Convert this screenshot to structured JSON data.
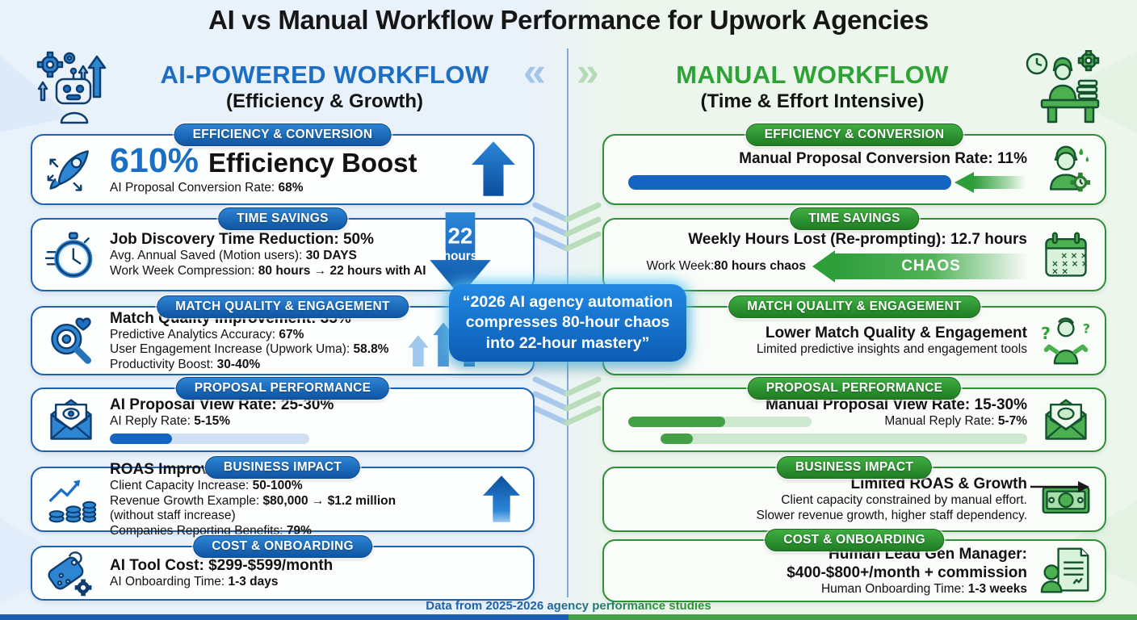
{
  "page": {
    "title": "AI vs Manual Workflow Performance for Upwork Agencies",
    "quote": "“2026 AI agency automation compresses 80-hour chaos into 22-hour mastery”",
    "footer": "Data from 2025-2026 agency performance studies"
  },
  "colors": {
    "blue_accent": "#1c6ec2",
    "blue_dark": "#0f55a3",
    "blue_bar_fill": "#1565c0",
    "blue_bar_track": "#cfe0f5",
    "green_accent": "#2fa235",
    "green_dark": "#1f7d24",
    "green_bar_fill": "#43a047",
    "green_bar_track": "#cde8cf"
  },
  "divider": {
    "left_glyph": "«",
    "right_glyph": "»"
  },
  "left": {
    "heading": "AI-POWERED WORKFLOW",
    "subheading": "(Efficiency & Growth)",
    "header_icon": "robot-automation-icon",
    "cards": [
      {
        "badge": "EFFICIENCY & CONVERSION",
        "icon": "rocket-icon",
        "deco": "arrow-up",
        "rows": [
          {
            "cls": "headline",
            "segs": [
              {
                "t": "610% ",
                "b": true,
                "accent": true
              },
              {
                "t": "Efficiency Boost",
                "b": true
              }
            ]
          },
          {
            "cls": "sub",
            "segs": [
              {
                "t": "AI Proposal Conversion Rate: "
              },
              {
                "t": "68%",
                "b": true
              }
            ]
          }
        ]
      },
      {
        "badge": "TIME SAVINGS",
        "icon": "stopwatch-icon",
        "deco": "arrow-down-hours",
        "deco_labels": [
          "22",
          "hours"
        ],
        "rows": [
          {
            "cls": "lead",
            "segs": [
              {
                "t": "Job Discovery Time Reduction: 50%",
                "b": true
              }
            ]
          },
          {
            "cls": "sub",
            "segs": [
              {
                "t": "Avg. Annual Saved (Motion users): "
              },
              {
                "t": "30 DAYS",
                "b": true
              }
            ]
          },
          {
            "cls": "sub",
            "segs": [
              {
                "t": "Work Week Compression: "
              },
              {
                "t": "80 hours → 22 hours with AI",
                "b": true
              }
            ]
          }
        ]
      },
      {
        "badge": "MATCH QUALITY & ENGAGEMENT",
        "icon": "magnifier-heart-icon",
        "deco": "rising-arrows",
        "rows": [
          {
            "cls": "lead",
            "segs": [
              {
                "t": "Match Quality Improvement: 35%",
                "b": true
              }
            ]
          },
          {
            "cls": "sub",
            "segs": [
              {
                "t": "Predictive Analytics Accuracy: "
              },
              {
                "t": "67%",
                "b": true
              }
            ]
          },
          {
            "cls": "sub",
            "segs": [
              {
                "t": "User Engagement Increase (Upwork Uma): "
              },
              {
                "t": "58.8%",
                "b": true
              }
            ]
          },
          {
            "cls": "sub",
            "segs": [
              {
                "t": "Productivity Boost: "
              },
              {
                "t": "30-40%",
                "b": true
              }
            ]
          }
        ]
      },
      {
        "badge": "PROPOSAL PERFORMANCE",
        "icon": "envelope-eye-icon",
        "rows": [
          {
            "cls": "lead",
            "segs": [
              {
                "t": "AI Proposal View Rate: 25-30%",
                "b": true
              }
            ]
          },
          {
            "cls": "sub",
            "segs": [
              {
                "t": "AI Reply Rate: "
              },
              {
                "t": "5-15%",
                "b": true
              }
            ]
          }
        ],
        "progress": [
          {
            "type": "track",
            "palette": "blue",
            "track_pct": 60,
            "fill_pct": 31
          }
        ]
      },
      {
        "badge": "BUSINESS IMPACT",
        "icon": "growth-coins-icon",
        "deco": "arrow-up-small",
        "rows": [
          {
            "cls": "lead",
            "segs": [
              {
                "t": "ROAS Improvement: 67%",
                "b": true
              }
            ]
          },
          {
            "cls": "sub",
            "segs": [
              {
                "t": "Client Capacity Increase: "
              },
              {
                "t": "50-100%",
                "b": true
              }
            ]
          },
          {
            "cls": "sub",
            "segs": [
              {
                "t": "Revenue Growth Example: "
              },
              {
                "t": "$80,000 → $1.2 million",
                "b": true
              },
              {
                "t": " (without staff increase)"
              }
            ]
          },
          {
            "cls": "sub",
            "segs": [
              {
                "t": "Companies Reporting Benefits: "
              },
              {
                "t": "79%",
                "b": true
              }
            ]
          }
        ]
      },
      {
        "badge": "COST & ONBOARDING",
        "icon": "price-tag-icon",
        "rows": [
          {
            "cls": "lead",
            "segs": [
              {
                "t": "AI Tool Cost: $299-$599/month",
                "b": true
              }
            ]
          },
          {
            "cls": "sub",
            "segs": [
              {
                "t": "AI Onboarding Time: "
              },
              {
                "t": "1-3 days",
                "b": true
              }
            ]
          }
        ]
      }
    ]
  },
  "right": {
    "heading": "MANUAL WORKFLOW",
    "subheading": "(Time & Effort Intensive)",
    "header_icon": "person-desk-icon",
    "cards": [
      {
        "badge": "EFFICIENCY & CONVERSION",
        "icon": "stressed-worker-icon",
        "rows": [
          {
            "cls": "lead",
            "segs": [
              {
                "t": "Manual Proposal Conversion Rate: 11%",
                "b": true
              }
            ]
          }
        ],
        "progress": [
          {
            "type": "solid-arrow",
            "palette": "blue"
          }
        ]
      },
      {
        "badge": "TIME SAVINGS",
        "icon": "calendar-x-icon",
        "rows": [
          {
            "cls": "lead",
            "segs": [
              {
                "t": "Weekly Hours Lost (Re-prompting): 12.7 hours",
                "b": true
              }
            ]
          },
          {
            "cls": "sub chaos-row",
            "segs": [
              {
                "t": "Work Week: "
              },
              {
                "t": "80 hours chaos",
                "b": true
              }
            ],
            "widget": "chaos-arrow",
            "widget_label": "CHAOS"
          }
        ]
      },
      {
        "badge": "MATCH QUALITY & ENGAGEMENT",
        "icon": "shrug-icon",
        "rows": [
          {
            "cls": "lead",
            "segs": [
              {
                "t": "Lower Match Quality & Engagement",
                "b": true
              }
            ]
          },
          {
            "cls": "sub",
            "segs": [
              {
                "t": "Limited predictive insights and engagement tools"
              }
            ]
          }
        ]
      },
      {
        "badge": "PROPOSAL PERFORMANCE",
        "icon": "envelope-open-icon",
        "rows": [
          {
            "cls": "lead",
            "segs": [
              {
                "t": "Manual Proposal View Rate: 15-30%",
                "b": true
              }
            ]
          },
          {
            "cls": "sub row-split",
            "segs": [
              {
                "t": "Manual Reply Rate: "
              },
              {
                "t": "5-7%",
                "b": true
              }
            ],
            "widget": "bar-inline",
            "bar": {
              "palette": "green",
              "track_pct": 46,
              "fill_pct": 53
            }
          }
        ],
        "progress": [
          {
            "type": "track",
            "palette": "green",
            "track_pct": 92,
            "fill_pct": 9
          }
        ]
      },
      {
        "badge": "BUSINESS IMPACT",
        "icon": "money-bill-icon",
        "deco": "flat-arrow",
        "rows": [
          {
            "cls": "lead",
            "segs": [
              {
                "t": "Limited ROAS & Growth",
                "b": true
              }
            ]
          },
          {
            "cls": "sub",
            "segs": [
              {
                "t": "Client capacity constrained by manual effort."
              }
            ]
          },
          {
            "cls": "sub",
            "segs": [
              {
                "t": "Slower revenue growth, higher staff dependency."
              }
            ]
          }
        ]
      },
      {
        "badge": "COST & ONBOARDING",
        "icon": "document-person-icon",
        "rows": [
          {
            "cls": "lead",
            "segs": [
              {
                "t": "Human Lead Gen Manager:",
                "b": true
              }
            ]
          },
          {
            "cls": "lead",
            "segs": [
              {
                "t": "$400-$800+/month + commission",
                "b": true
              }
            ]
          },
          {
            "cls": "sub",
            "segs": [
              {
                "t": "Human Onboarding Time: "
              },
              {
                "t": "1-3 weeks",
                "b": true
              }
            ]
          }
        ]
      }
    ]
  }
}
